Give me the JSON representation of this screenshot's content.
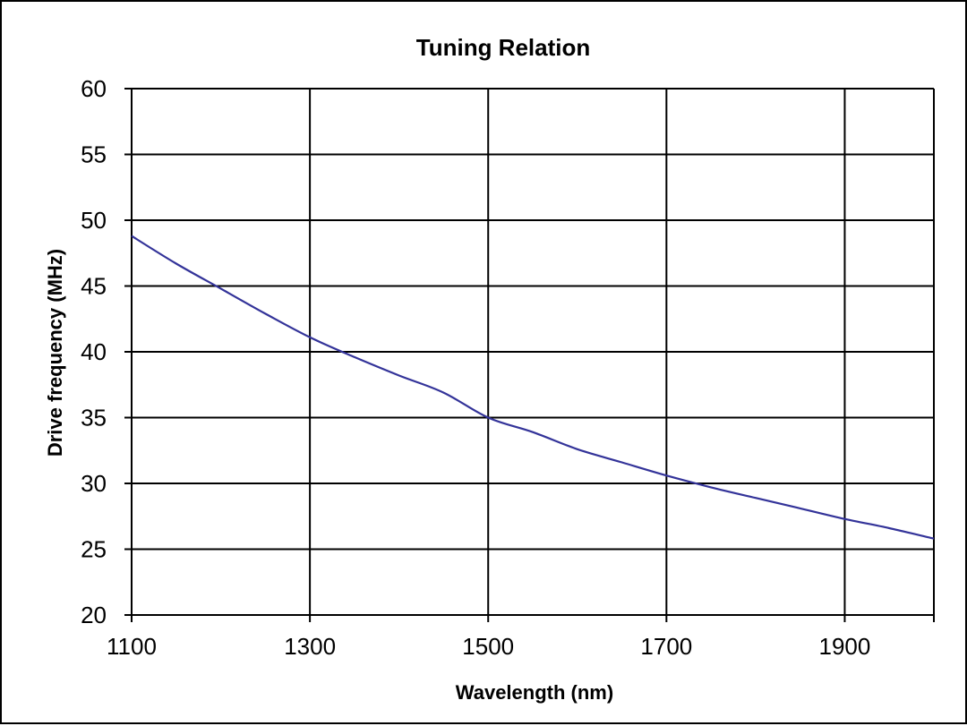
{
  "chart_data": {
    "type": "line",
    "title": "Tuning Relation",
    "xlabel": "Wavelength (nm)",
    "ylabel": "Drive frequency (MHz)",
    "xlim": [
      1100,
      2000
    ],
    "ylim": [
      20,
      60
    ],
    "x_ticks": [
      1100,
      1300,
      1500,
      1700,
      1900
    ],
    "y_ticks": [
      20,
      25,
      30,
      35,
      40,
      45,
      50,
      55,
      60
    ],
    "x_grid_lines": [
      1100,
      1300,
      1500,
      1700,
      1900,
      2000
    ],
    "y_grid_lines": [
      20,
      25,
      30,
      35,
      40,
      45,
      50,
      55,
      60
    ],
    "grid": true,
    "legend": "none",
    "line_color": "#333399",
    "series": [
      {
        "x": [
          1100,
          1150,
          1200,
          1250,
          1300,
          1350,
          1400,
          1450,
          1500,
          1550,
          1600,
          1650,
          1700,
          1750,
          1800,
          1850,
          1900,
          1950,
          2000
        ],
        "y": [
          48.8,
          46.7,
          44.8,
          42.9,
          41.1,
          39.6,
          38.2,
          36.9,
          35.0,
          33.9,
          32.6,
          31.6,
          30.6,
          29.7,
          28.9,
          28.1,
          27.3,
          26.6,
          25.8
        ]
      }
    ]
  }
}
